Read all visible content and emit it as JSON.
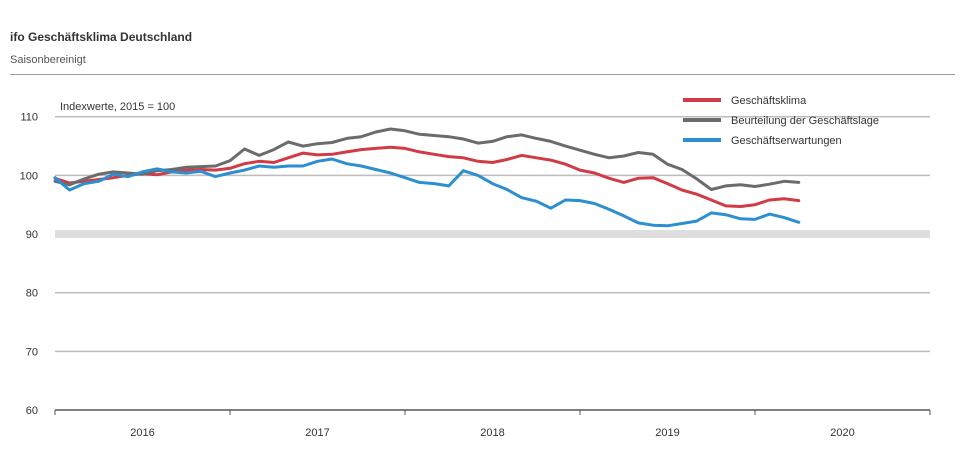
{
  "header": {
    "title": "ifo Geschäftsklima Deutschland",
    "subtitle": "Saisonbereinigt"
  },
  "colors": {
    "klima": "#d13b45",
    "lage": "#6b6b6b",
    "erwartungen": "#2b8fd0",
    "grid": "#bdbdbd",
    "highlight_band": "#dedede",
    "axis": "#555555"
  },
  "chart_data": {
    "type": "line",
    "annotation": "Indexwerte, 2015 = 100",
    "y_ticks": [
      60,
      70,
      80,
      90,
      100,
      110
    ],
    "ylim": [
      60,
      112
    ],
    "x_ticks": [
      "2016",
      "2017",
      "2018",
      "2019",
      "2020"
    ],
    "xlim": [
      2016.0,
      2021.0
    ],
    "highlight_y": 90,
    "legend_placement": "top-right",
    "series": [
      {
        "name": "Geschäftsklima",
        "color_key": "klima",
        "x": [
          2016.0,
          2016.083,
          2016.167,
          2016.25,
          2016.333,
          2016.417,
          2016.5,
          2016.583,
          2016.667,
          2016.75,
          2016.833,
          2016.917,
          2017.0,
          2017.083,
          2017.167,
          2017.25,
          2017.333,
          2017.417,
          2017.5,
          2017.583,
          2017.667,
          2017.75,
          2017.833,
          2017.917,
          2018.0,
          2018.083,
          2018.167,
          2018.25,
          2018.333,
          2018.417,
          2018.5,
          2018.583,
          2018.667,
          2018.75,
          2018.833,
          2018.917,
          2019.0,
          2019.083,
          2019.167,
          2019.25,
          2019.333,
          2019.417,
          2019.5,
          2019.583,
          2019.667,
          2019.75,
          2019.833,
          2019.917,
          2020.0,
          2020.083,
          2020.167,
          2020.25
        ],
        "values": [
          99.5,
          98.7,
          99.0,
          99.3,
          99.6,
          100.0,
          100.3,
          100.1,
          100.6,
          100.9,
          101.0,
          100.9,
          101.2,
          102.0,
          102.4,
          102.2,
          103.0,
          103.8,
          103.5,
          103.6,
          104.0,
          104.4,
          104.6,
          104.8,
          104.6,
          104.0,
          103.6,
          103.2,
          103.0,
          102.4,
          102.2,
          102.7,
          103.4,
          103.0,
          102.6,
          101.9,
          100.9,
          100.4,
          99.5,
          98.8,
          99.5,
          99.6,
          98.6,
          97.5,
          96.8,
          95.8,
          94.8,
          94.7,
          95.0,
          95.8,
          96.0,
          95.7
        ]
      },
      {
        "name": "Beurteilung der Geschäftslage",
        "color_key": "lage",
        "x": [
          2016.0,
          2016.083,
          2016.167,
          2016.25,
          2016.333,
          2016.417,
          2016.5,
          2016.583,
          2016.667,
          2016.75,
          2016.833,
          2016.917,
          2017.0,
          2017.083,
          2017.167,
          2017.25,
          2017.333,
          2017.417,
          2017.5,
          2017.583,
          2017.667,
          2017.75,
          2017.833,
          2017.917,
          2018.0,
          2018.083,
          2018.167,
          2018.25,
          2018.333,
          2018.417,
          2018.5,
          2018.583,
          2018.667,
          2018.75,
          2018.833,
          2018.917,
          2019.0,
          2019.083,
          2019.167,
          2019.25,
          2019.333,
          2019.417,
          2019.5,
          2019.583,
          2019.667,
          2019.75,
          2019.833,
          2019.917,
          2020.0,
          2020.083,
          2020.167,
          2020.25
        ],
        "values": [
          99.0,
          98.4,
          99.4,
          100.2,
          100.6,
          100.4,
          100.2,
          100.8,
          101.0,
          101.4,
          101.5,
          101.6,
          102.5,
          104.5,
          103.4,
          104.4,
          105.7,
          105.0,
          105.4,
          105.6,
          106.3,
          106.6,
          107.4,
          107.9,
          107.6,
          107.0,
          106.8,
          106.6,
          106.2,
          105.5,
          105.8,
          106.6,
          106.9,
          106.3,
          105.8,
          105.0,
          104.3,
          103.6,
          103.0,
          103.3,
          103.9,
          103.6,
          101.9,
          101.0,
          99.4,
          97.6,
          98.2,
          98.4,
          98.1,
          98.5,
          99.0,
          98.8
        ]
      },
      {
        "name": "Geschäftserwartungen",
        "color_key": "erwartungen",
        "x": [
          2016.0,
          2016.083,
          2016.167,
          2016.25,
          2016.333,
          2016.417,
          2016.5,
          2016.583,
          2016.667,
          2016.75,
          2016.833,
          2016.917,
          2017.0,
          2017.083,
          2017.167,
          2017.25,
          2017.333,
          2017.417,
          2017.5,
          2017.583,
          2017.667,
          2017.75,
          2017.833,
          2017.917,
          2018.0,
          2018.083,
          2018.167,
          2018.25,
          2018.333,
          2018.417,
          2018.5,
          2018.583,
          2018.667,
          2018.75,
          2018.833,
          2018.917,
          2019.0,
          2019.083,
          2019.167,
          2019.25,
          2019.333,
          2019.417,
          2019.5,
          2019.583,
          2019.667,
          2019.75,
          2019.833,
          2019.917,
          2020.0,
          2020.083,
          2020.167,
          2020.25
        ],
        "values": [
          99.6,
          97.5,
          98.6,
          99.0,
          100.2,
          99.8,
          100.6,
          101.1,
          100.6,
          100.4,
          100.7,
          99.8,
          100.4,
          100.9,
          101.6,
          101.4,
          101.6,
          101.6,
          102.4,
          102.8,
          102.0,
          101.6,
          101.0,
          100.4,
          99.6,
          98.8,
          98.6,
          98.2,
          100.8,
          100.0,
          98.6,
          97.6,
          96.2,
          95.6,
          94.4,
          95.8,
          95.7,
          95.2,
          94.2,
          93.1,
          91.9,
          91.5,
          91.4,
          91.8,
          92.2,
          93.6,
          93.3,
          92.6,
          92.5,
          93.4,
          92.8,
          92.0
        ]
      }
    ]
  }
}
